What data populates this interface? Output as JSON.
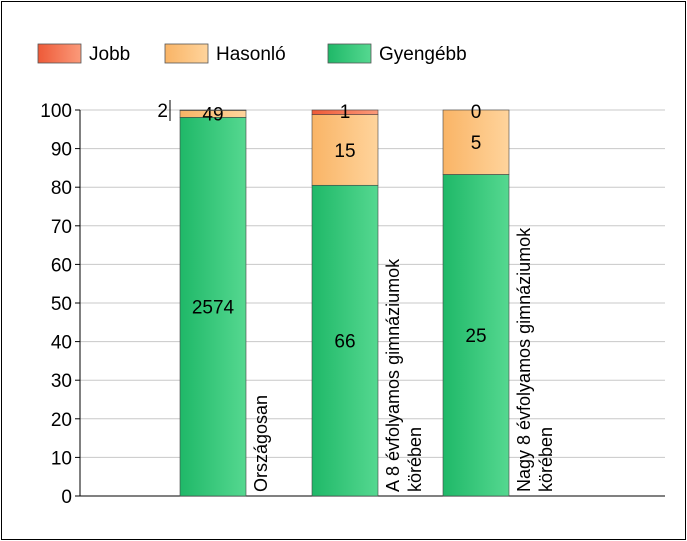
{
  "chart_data": {
    "type": "bar",
    "stacked": "percent",
    "legend": {
      "placement": "top-left",
      "items": [
        {
          "label": "Jobb",
          "color": "#f06a45"
        },
        {
          "label": "Hasonló",
          "color": "#fbbd6e"
        },
        {
          "label": "Gyengébb",
          "color": "#2bbd6e"
        }
      ]
    },
    "categories": [
      "Országosan",
      "A 8 évfolyamos gimnáziumok körében",
      "Nagy 8 évfolyamos gimnáziumok körében"
    ],
    "category_label_lines": [
      [
        "Országosan"
      ],
      [
        "A 8 évfolyamos gimnáziumok",
        "körében"
      ],
      [
        "Nagy 8 évfolyamos gimnáziumok",
        "körében"
      ]
    ],
    "series": [
      {
        "name": "Gyengébb",
        "color": "#2bbd6e",
        "counts": [
          2574,
          66,
          25
        ],
        "percent": [
          98.1,
          80.5,
          83.3
        ]
      },
      {
        "name": "Hasonló",
        "color": "#fbbd6e",
        "counts": [
          49,
          15,
          5
        ],
        "percent": [
          1.8,
          18.3,
          16.7
        ]
      },
      {
        "name": "Jobb",
        "color": "#f06a45",
        "counts": [
          2,
          1,
          0
        ],
        "percent": [
          0.1,
          1.2,
          0.0
        ]
      }
    ],
    "ylim": [
      0,
      100
    ],
    "yticks": [
      0,
      10,
      20,
      30,
      40,
      50,
      60,
      70,
      80,
      90,
      100
    ],
    "grid": true,
    "xlabel": "",
    "ylabel": ""
  }
}
